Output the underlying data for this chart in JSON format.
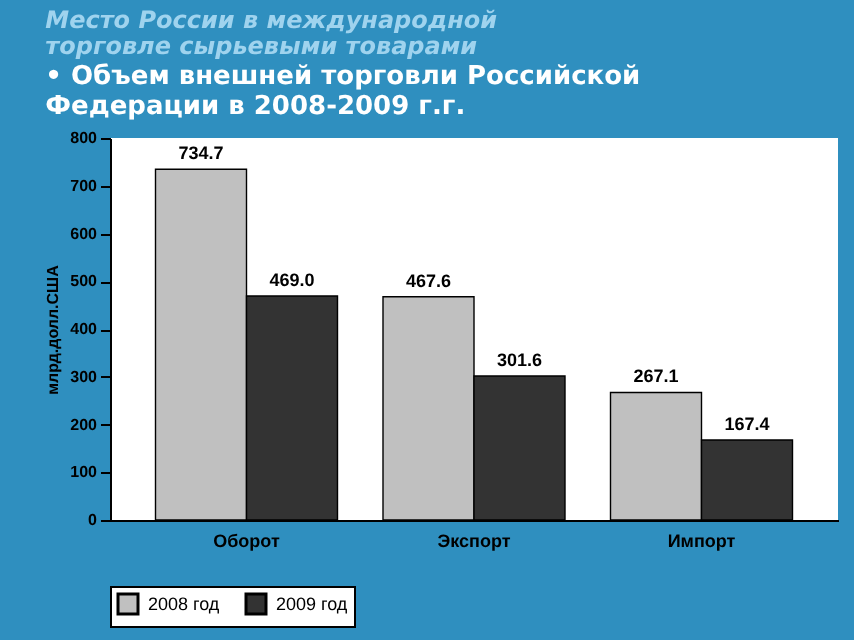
{
  "chart_data": {
    "type": "bar",
    "title": "Место России в международной торговле сырьевыми товарами",
    "subtitle": "• Объем внешней торговли Российской Федерации  в 2008-2009 г.г.",
    "ylabel": "млрд.долл.США",
    "categories": [
      "Оборот",
      "Экспорт",
      "Импорт"
    ],
    "series": [
      {
        "name": "2008 год",
        "color": "#c0c0c0",
        "values": [
          734.7,
          467.6,
          267.1
        ],
        "value_labels": [
          "734.7",
          "467.6",
          "267.1"
        ]
      },
      {
        "name": "2009 год",
        "color": "#333333",
        "values": [
          469.0,
          301.6,
          167.4
        ],
        "value_labels": [
          "469.0",
          "301.6",
          "167.4"
        ]
      }
    ],
    "ylim": [
      0,
      800
    ],
    "yticks": [
      0,
      100,
      200,
      300,
      400,
      500,
      600,
      700,
      800
    ],
    "legend": "bottom",
    "grid": false
  }
}
